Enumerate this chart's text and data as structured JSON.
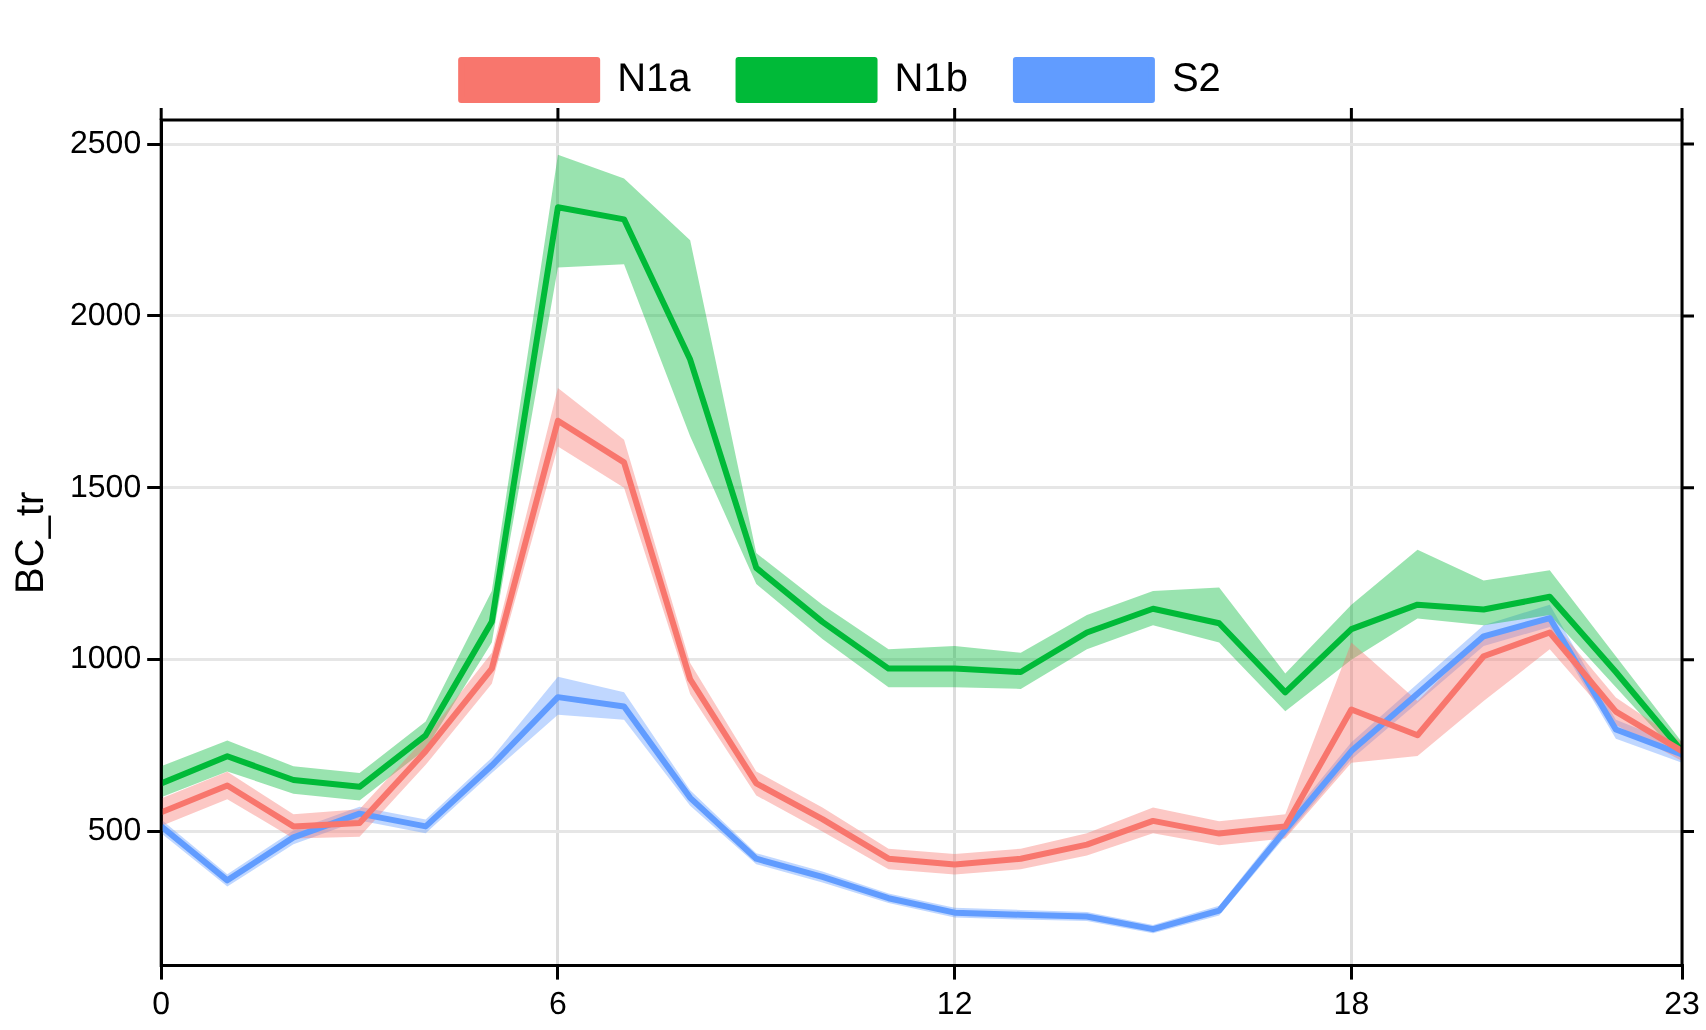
{
  "chart_data": {
    "type": "line",
    "ylabel": "BC_tr",
    "x": [
      0,
      1,
      2,
      3,
      4,
      5,
      6,
      7,
      8,
      9,
      10,
      11,
      12,
      13,
      14,
      15,
      16,
      17,
      18,
      19,
      20,
      21,
      22,
      23
    ],
    "xlim": [
      0,
      23
    ],
    "xticks": [
      0,
      6,
      12,
      18,
      23
    ],
    "ylim": [
      110,
      2570
    ],
    "yticks": [
      500,
      1000,
      1500,
      2000,
      2500
    ],
    "grid": true,
    "legend": "top",
    "marker": "none",
    "line_style": "solid",
    "series": [
      {
        "name": "N1a",
        "color": "#f8766d",
        "values": [
          556,
          634,
          515,
          525,
          734,
          974,
          1695,
          1574,
          943,
          640,
          536,
          421,
          404,
          421,
          462,
          531,
          494,
          515,
          855,
          780,
          1010,
          1079,
          849,
          734
        ],
        "lower": [
          516,
          594,
          480,
          485,
          694,
          930,
          1620,
          1500,
          900,
          605,
          500,
          390,
          375,
          390,
          430,
          495,
          460,
          480,
          700,
          720,
          880,
          1030,
          810,
          705
        ],
        "upper": [
          596,
          674,
          550,
          565,
          774,
          1020,
          1790,
          1640,
          990,
          675,
          570,
          450,
          435,
          450,
          495,
          570,
          530,
          550,
          1050,
          880,
          1070,
          1120,
          890,
          760
        ]
      },
      {
        "name": "N1b",
        "color": "#00ba38",
        "values": [
          640,
          719,
          650,
          630,
          780,
          1110,
          2316,
          2281,
          1873,
          1267,
          1110,
          974,
          974,
          964,
          1079,
          1148,
          1106,
          905,
          1089,
          1160,
          1146,
          1183,
          964,
          734
        ],
        "lower": [
          600,
          675,
          610,
          590,
          740,
          1050,
          2141,
          2150,
          1650,
          1220,
          1060,
          920,
          920,
          915,
          1030,
          1100,
          1050,
          850,
          1000,
          1120,
          1100,
          1130,
          920,
          710
        ],
        "upper": [
          690,
          765,
          690,
          670,
          820,
          1200,
          2469,
          2400,
          2220,
          1310,
          1160,
          1030,
          1040,
          1020,
          1130,
          1200,
          1210,
          960,
          1160,
          1320,
          1230,
          1260,
          1010,
          760
        ]
      },
      {
        "name": "S2",
        "color": "#619cff",
        "values": [
          515,
          358,
          483,
          552,
          515,
          692,
          891,
          864,
          598,
          421,
          368,
          306,
          264,
          258,
          253,
          216,
          270,
          504,
          734,
          901,
          1068,
          1121,
          797,
          724
        ],
        "lower": [
          495,
          340,
          463,
          532,
          495,
          670,
          840,
          825,
          575,
          405,
          352,
          292,
          250,
          244,
          240,
          204,
          256,
          485,
          710,
          875,
          1040,
          1095,
          770,
          700
        ],
        "upper": [
          535,
          376,
          503,
          572,
          535,
          715,
          950,
          905,
          620,
          437,
          384,
          320,
          278,
          272,
          266,
          228,
          284,
          525,
          760,
          930,
          1100,
          1160,
          825,
          748
        ]
      }
    ]
  }
}
